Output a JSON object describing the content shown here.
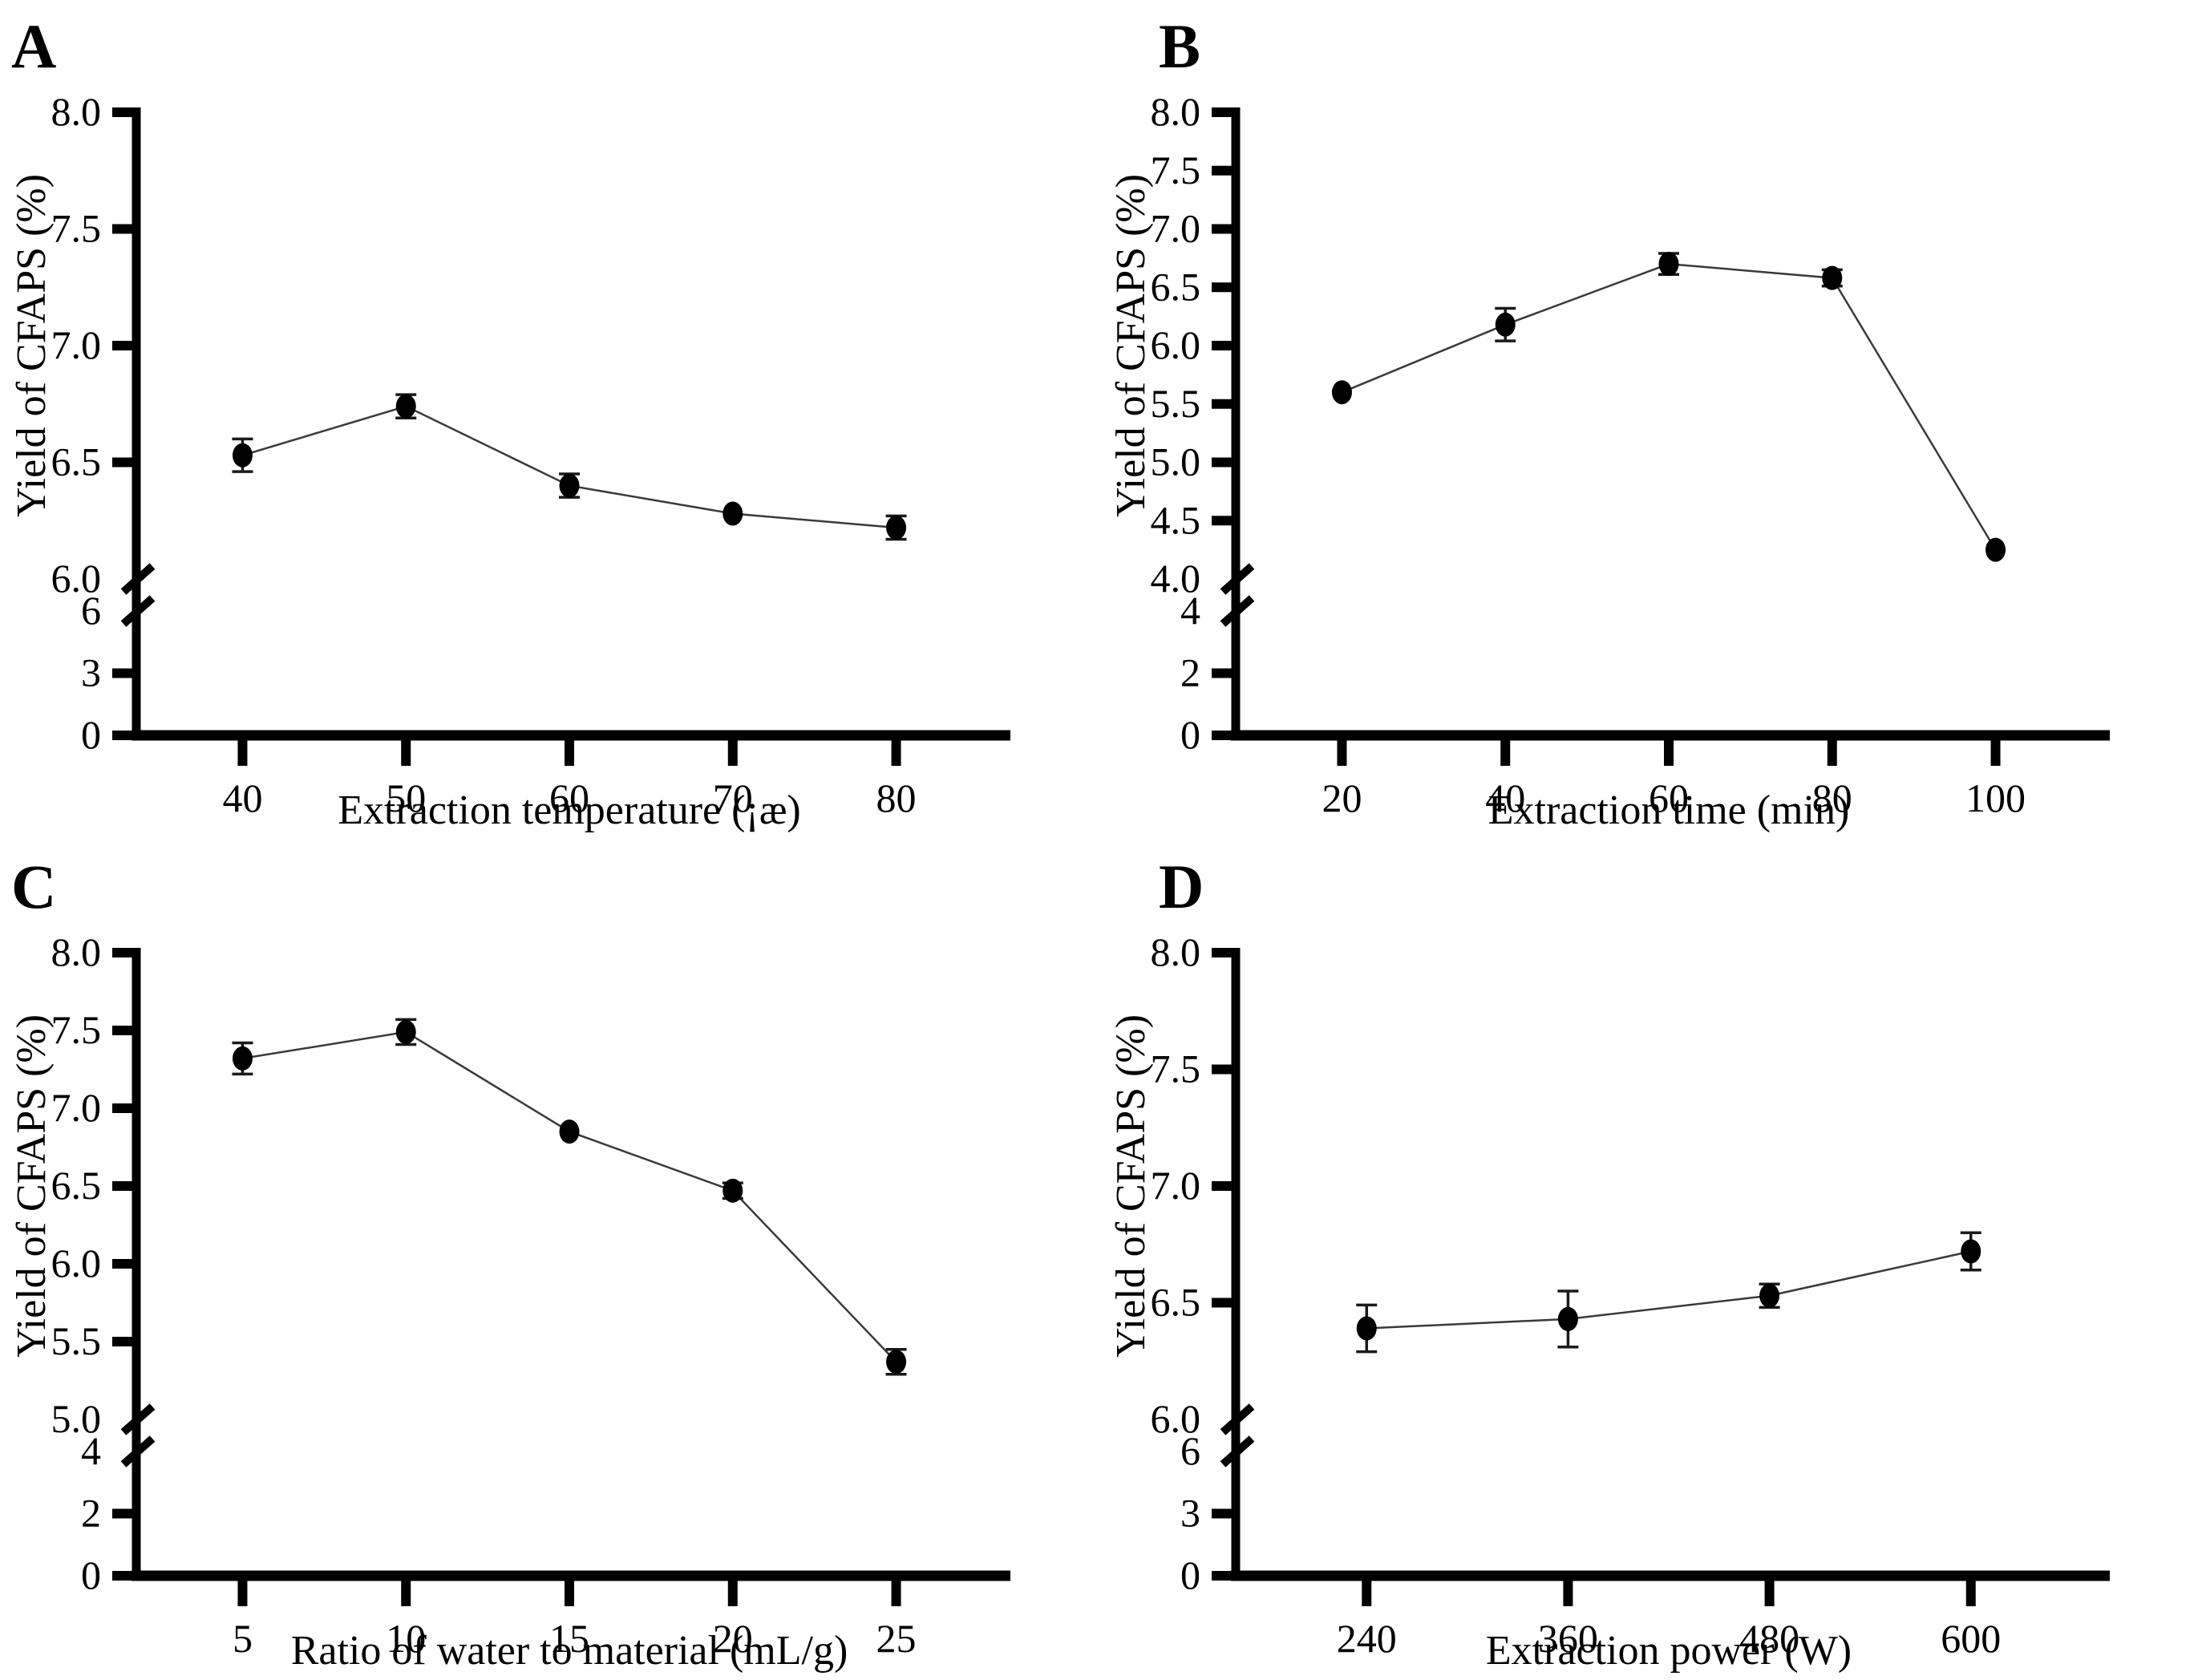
{
  "figure": {
    "background": "#ffffff",
    "axis_color": "#000000",
    "line_color": "#3a3a3a",
    "marker_color": "#000000",
    "panel_labels": [
      "A",
      "B",
      "C",
      "D"
    ]
  },
  "chart_data": [
    {
      "panel": "A",
      "type": "line",
      "title": "",
      "xlabel": "Extraction temperature (¡æ)",
      "ylabel": "Yield of CFAPS (%)",
      "x_tick_labels": [
        "40",
        "50",
        "60",
        "70",
        "80"
      ],
      "x": [
        40,
        50,
        60,
        70,
        80
      ],
      "y": [
        6.53,
        6.74,
        6.4,
        6.28,
        6.22
      ],
      "y_err": [
        0.07,
        0.05,
        0.05,
        0,
        0.05
      ],
      "marker": "filled-circle",
      "grid": false,
      "legend": null,
      "broken_y_axis": {
        "upper_tick_labels": [
          "8.0",
          "7.5",
          "7.0",
          "6.5",
          "6.0"
        ],
        "upper_range": [
          6.0,
          8.0
        ],
        "lower_tick_labels": [
          "6",
          "3",
          "0"
        ]
      }
    },
    {
      "panel": "B",
      "type": "line",
      "title": "",
      "xlabel": "Extraction time (min)",
      "ylabel": "Yield of CFAPS (%)",
      "x_tick_labels": [
        "20",
        "40",
        "60",
        "80",
        "100"
      ],
      "x": [
        20,
        40,
        60,
        80,
        100
      ],
      "y": [
        5.6,
        6.18,
        6.7,
        6.58,
        4.25
      ],
      "y_err": [
        0,
        0.14,
        0.09,
        0.07,
        0
      ],
      "marker": "filled-circle",
      "grid": false,
      "legend": null,
      "broken_y_axis": {
        "upper_tick_labels": [
          "8.0",
          "7.5",
          "7.0",
          "6.5",
          "6.0",
          "5.5",
          "5.0",
          "4.5",
          "4.0"
        ],
        "upper_range": [
          4.0,
          8.0
        ],
        "lower_tick_labels": [
          "4",
          "2",
          "0"
        ]
      }
    },
    {
      "panel": "C",
      "type": "line",
      "title": "",
      "xlabel": "Ratio of water to material (mL/g)",
      "ylabel": "Yield of CFAPS (%)",
      "x_tick_labels": [
        "5",
        "10",
        "15",
        "20",
        "25"
      ],
      "x": [
        5,
        10,
        15,
        20,
        25
      ],
      "y": [
        7.32,
        7.49,
        6.85,
        6.47,
        5.37
      ],
      "y_err": [
        0.1,
        0.08,
        0,
        0.05,
        0.08
      ],
      "marker": "filled-circle",
      "grid": false,
      "legend": null,
      "broken_y_axis": {
        "upper_tick_labels": [
          "8.0",
          "7.5",
          "7.0",
          "6.5",
          "6.0",
          "5.5",
          "5.0"
        ],
        "upper_range": [
          5.0,
          8.0
        ],
        "lower_tick_labels": [
          "4",
          "2",
          "0"
        ]
      }
    },
    {
      "panel": "D",
      "type": "line",
      "title": "",
      "xlabel": "Extraction power (W)",
      "ylabel": "Yield of CFAPS (%)",
      "x_tick_labels": [
        "240",
        "360",
        "480",
        "600"
      ],
      "x": [
        240,
        360,
        480,
        600
      ],
      "y": [
        6.39,
        6.43,
        6.53,
        6.72
      ],
      "y_err": [
        0.1,
        0.12,
        0.05,
        0.08
      ],
      "marker": "filled-circle",
      "grid": false,
      "legend": null,
      "broken_y_axis": {
        "upper_tick_labels": [
          "8.0",
          "7.5",
          "7.0",
          "6.5",
          "6.0"
        ],
        "upper_range": [
          6.0,
          8.0
        ],
        "lower_tick_labels": [
          "6",
          "3",
          "0"
        ]
      }
    }
  ]
}
